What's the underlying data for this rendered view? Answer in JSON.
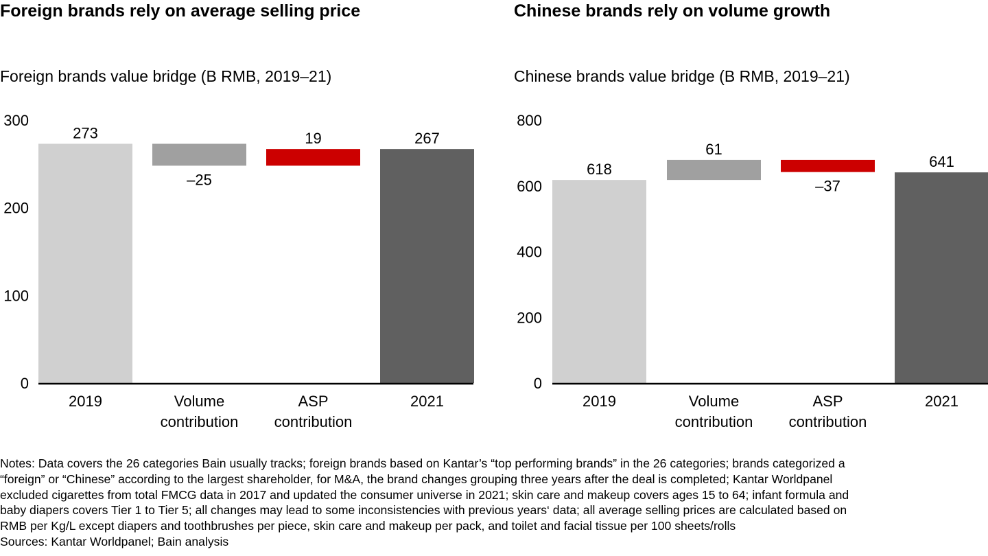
{
  "left": {
    "title": "Foreign brands rely on average selling price",
    "subtitle": "Foreign brands value bridge (B RMB, 2019–21)"
  },
  "right": {
    "title": "Chinese brands rely on volume growth",
    "subtitle": "Chinese brands value bridge (B RMB, 2019–21)"
  },
  "colors": {
    "start": "#d0d0d0",
    "volume": "#a0a0a0",
    "asp": "#cc0000",
    "end": "#606060",
    "axis": "#000000"
  },
  "chart_data": [
    {
      "type": "bar",
      "subtype": "waterfall",
      "title": "Foreign brands value bridge (B RMB, 2019–21)",
      "categories": [
        "2019",
        "Volume contribution",
        "ASP contribution",
        "2021"
      ],
      "category_lines": [
        [
          "2019"
        ],
        [
          "Volume",
          "contribution"
        ],
        [
          "ASP",
          "contribution"
        ],
        [
          "2021"
        ]
      ],
      "values": [
        273,
        -25,
        19,
        267
      ],
      "labels": [
        "273",
        "–25",
        "19",
        "267"
      ],
      "kinds": [
        "total",
        "delta",
        "delta",
        "total"
      ],
      "ylim": [
        0,
        300
      ],
      "yticks": [
        0,
        100,
        200,
        300
      ],
      "xlabel": "",
      "ylabel": "",
      "grid": false
    },
    {
      "type": "bar",
      "subtype": "waterfall",
      "title": "Chinese brands value bridge (B RMB, 2019–21)",
      "categories": [
        "2019",
        "Volume contribution",
        "ASP contribution",
        "2021"
      ],
      "category_lines": [
        [
          "2019"
        ],
        [
          "Volume",
          "contribution"
        ],
        [
          "ASP",
          "contribution"
        ],
        [
          "2021"
        ]
      ],
      "values": [
        618,
        61,
        -37,
        641
      ],
      "labels": [
        "618",
        "61",
        "–37",
        "641"
      ],
      "kinds": [
        "total",
        "delta",
        "delta",
        "total"
      ],
      "ylim": [
        0,
        800
      ],
      "yticks": [
        0,
        200,
        400,
        600,
        800
      ],
      "xlabel": "",
      "ylabel": "",
      "grid": false
    }
  ],
  "notes": {
    "lines": [
      "Notes: Data covers the 26 categories Bain usually tracks; foreign brands based on Kantar’s “top performing brands” in the 26 categories; brands categorized a",
      "“foreign” or “Chinese” according to the largest shareholder, for M&A, the brand changes grouping three years after the deal is completed; Kantar Worldpanel",
      "excluded cigarettes from total FMCG data in 2017 and updated the consumer universe in 2021; skin care and makeup covers ages 15 to 64; infant formula and",
      "baby diapers covers Tier 1 to Tier 5; all changes may lead to some inconsistencies with previous years‘ data; all average selling prices are calculated based on",
      "RMB per Kg/L except diapers and toothbrushes per piece, skin care and makeup per pack, and toilet and facial tissue per 100 sheets/rolls"
    ],
    "sources": "Sources: Kantar Worldpanel; Bain analysis"
  }
}
